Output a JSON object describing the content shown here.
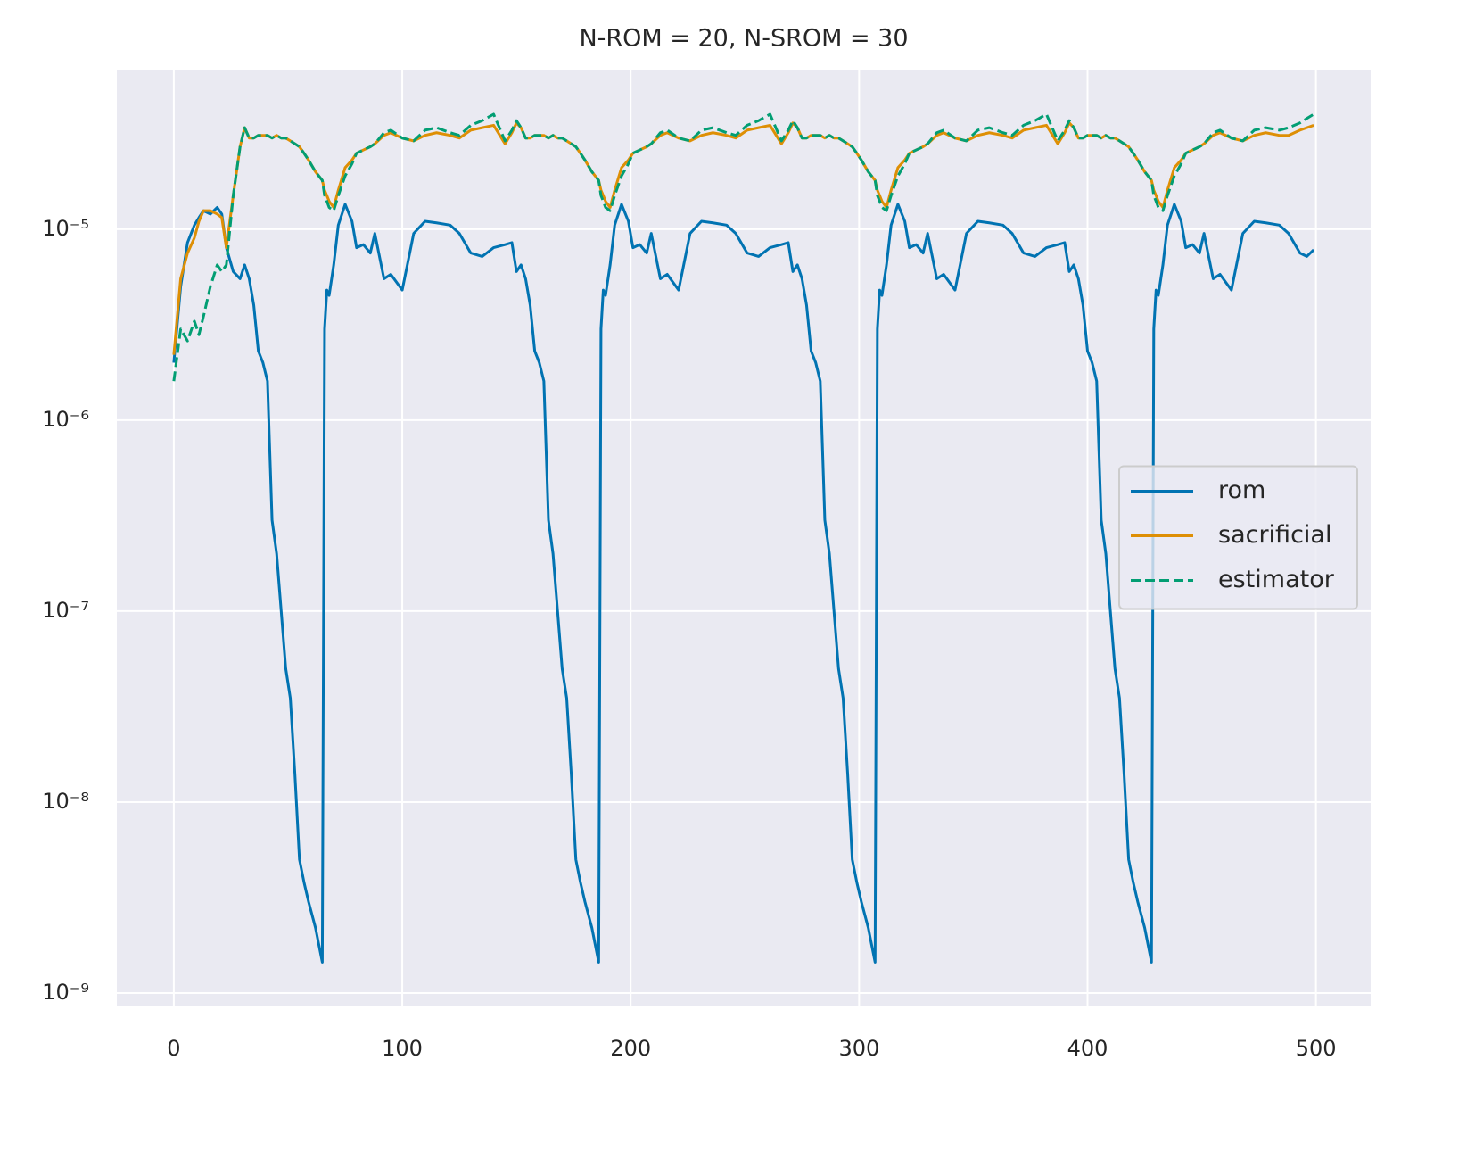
{
  "chart_data": {
    "type": "line",
    "title": "N-ROM = 20, N-SROM = 30",
    "x": [
      0,
      3,
      6,
      9,
      11,
      13,
      16,
      19,
      21,
      23,
      26,
      29,
      31,
      33,
      35,
      37,
      39,
      41,
      43,
      45,
      47,
      49,
      51,
      53,
      55,
      57,
      59,
      62,
      65,
      66,
      67,
      68,
      70,
      72,
      75,
      78,
      80,
      83,
      86,
      88,
      92,
      95,
      100,
      105,
      110,
      115,
      121,
      125,
      130,
      135,
      140,
      145,
      148,
      150,
      152,
      154,
      156,
      158,
      160,
      162,
      164,
      166,
      168,
      170,
      172,
      174,
      176,
      178,
      180,
      183,
      186,
      187,
      188,
      189,
      191,
      193,
      196,
      199,
      201,
      204,
      207,
      209,
      213,
      216,
      221,
      226,
      231,
      236,
      242,
      246,
      251,
      256,
      261,
      266,
      269,
      271,
      273,
      275,
      277,
      279,
      281,
      283,
      285,
      287,
      289,
      291,
      293,
      295,
      297,
      299,
      301,
      304,
      307,
      308,
      309,
      310,
      312,
      314,
      317,
      320,
      322,
      325,
      328,
      330,
      334,
      337,
      342,
      347,
      352,
      357,
      363,
      367,
      372,
      377,
      382,
      387,
      390,
      392,
      394,
      396,
      398,
      400,
      402,
      404,
      406,
      408,
      410,
      412,
      414,
      416,
      418,
      420,
      422,
      425,
      428,
      429,
      430,
      431,
      433,
      435,
      438,
      441,
      443,
      446,
      449,
      451,
      455,
      458,
      463,
      468,
      473,
      478,
      484,
      488,
      493,
      496,
      499
    ],
    "series": [
      {
        "name": "rom",
        "color": "#0173b2",
        "linestyle": "solid",
        "values": [
          2e-06,
          5e-06,
          8.5e-06,
          1.05e-05,
          1.15e-05,
          1.25e-05,
          1.2e-05,
          1.3e-05,
          1.2e-05,
          8e-06,
          6e-06,
          5.5e-06,
          6.5e-06,
          5.5e-06,
          4e-06,
          2.3e-06,
          2e-06,
          1.6e-06,
          3e-07,
          2e-07,
          1e-07,
          5e-08,
          3.5e-08,
          1.4e-08,
          5e-09,
          3.8e-09,
          3e-09,
          2.2e-09,
          1.45e-09,
          3e-06,
          4.8e-06,
          4.5e-06,
          6.5e-06,
          1.05e-05,
          1.35e-05,
          1.1e-05,
          8e-06,
          8.3e-06,
          7.5e-06,
          9.5e-06,
          5.5e-06,
          5.8e-06,
          4.8e-06,
          9.5e-06,
          1.1e-05,
          1.08e-05,
          1.05e-05,
          9.5e-06,
          7.5e-06,
          7.2e-06,
          8e-06,
          8.3e-06,
          8.5e-06,
          6e-06,
          6.5e-06,
          5.5e-06,
          4e-06,
          2.3e-06,
          2e-06,
          1.6e-06,
          3e-07,
          2e-07,
          1e-07,
          5e-08,
          3.5e-08,
          1.4e-08,
          5e-09,
          3.8e-09,
          3e-09,
          2.2e-09,
          1.45e-09,
          3e-06,
          4.8e-06,
          4.5e-06,
          6.5e-06,
          1.05e-05,
          1.35e-05,
          1.1e-05,
          8e-06,
          8.3e-06,
          7.5e-06,
          9.5e-06,
          5.5e-06,
          5.8e-06,
          4.8e-06,
          9.5e-06,
          1.1e-05,
          1.08e-05,
          1.05e-05,
          9.5e-06,
          7.5e-06,
          7.2e-06,
          8e-06,
          8.3e-06,
          8.5e-06,
          6e-06,
          6.5e-06,
          5.5e-06,
          4e-06,
          2.3e-06,
          2e-06,
          1.6e-06,
          3e-07,
          2e-07,
          1e-07,
          5e-08,
          3.5e-08,
          1.4e-08,
          5e-09,
          3.8e-09,
          3e-09,
          2.2e-09,
          1.45e-09,
          3e-06,
          4.8e-06,
          4.5e-06,
          6.5e-06,
          1.05e-05,
          1.35e-05,
          1.1e-05,
          8e-06,
          8.3e-06,
          7.5e-06,
          9.5e-06,
          5.5e-06,
          5.8e-06,
          4.8e-06,
          9.5e-06,
          1.1e-05,
          1.08e-05,
          1.05e-05,
          9.5e-06,
          7.5e-06,
          7.2e-06,
          8e-06,
          8.3e-06,
          8.5e-06,
          6e-06,
          6.5e-06,
          5.5e-06,
          4e-06,
          2.3e-06,
          2e-06,
          1.6e-06,
          3e-07,
          2e-07,
          1e-07,
          5e-08,
          3.5e-08,
          1.4e-08,
          5e-09,
          3.8e-09,
          3e-09,
          2.2e-09,
          1.45e-09,
          3e-06,
          4.8e-06,
          4.5e-06,
          6.5e-06,
          1.05e-05,
          1.35e-05,
          1.1e-05,
          8e-06,
          8.3e-06,
          7.5e-06,
          9.5e-06,
          5.5e-06,
          5.8e-06,
          4.8e-06,
          9.5e-06,
          1.1e-05,
          1.08e-05,
          1.05e-05,
          9.5e-06,
          7.5e-06,
          7.2e-06,
          7.8e-06
        ]
      },
      {
        "name": "sacrificial",
        "color": "#de8f05",
        "linestyle": "solid",
        "values": [
          2.2e-06,
          5.5e-06,
          7.5e-06,
          9e-06,
          1.1e-05,
          1.25e-05,
          1.25e-05,
          1.2e-05,
          1.15e-05,
          8e-06,
          1.5e-05,
          2.7e-05,
          3.4e-05,
          3e-05,
          3e-05,
          3.1e-05,
          3.1e-05,
          3.1e-05,
          3e-05,
          3.1e-05,
          3e-05,
          3e-05,
          2.9e-05,
          2.8e-05,
          2.7e-05,
          2.5e-05,
          2.3e-05,
          2e-05,
          1.8e-05,
          1.6e-05,
          1.5e-05,
          1.4e-05,
          1.3e-05,
          1.6e-05,
          2.1e-05,
          2.3e-05,
          2.5e-05,
          2.6e-05,
          2.7e-05,
          2.8e-05,
          3.1e-05,
          3.2e-05,
          3e-05,
          2.9e-05,
          3.1e-05,
          3.2e-05,
          3.1e-05,
          3e-05,
          3.3e-05,
          3.4e-05,
          3.5e-05,
          2.8e-05,
          3.2e-05,
          3.6e-05,
          3.4e-05,
          3e-05,
          3e-05,
          3.1e-05,
          3.1e-05,
          3.1e-05,
          3e-05,
          3.1e-05,
          3e-05,
          3e-05,
          2.9e-05,
          2.8e-05,
          2.7e-05,
          2.5e-05,
          2.3e-05,
          2e-05,
          1.8e-05,
          1.6e-05,
          1.5e-05,
          1.4e-05,
          1.3e-05,
          1.6e-05,
          2.1e-05,
          2.3e-05,
          2.5e-05,
          2.6e-05,
          2.7e-05,
          2.8e-05,
          3.1e-05,
          3.2e-05,
          3e-05,
          2.9e-05,
          3.1e-05,
          3.2e-05,
          3.1e-05,
          3e-05,
          3.3e-05,
          3.4e-05,
          3.5e-05,
          2.8e-05,
          3.2e-05,
          3.6e-05,
          3.4e-05,
          3e-05,
          3e-05,
          3.1e-05,
          3.1e-05,
          3.1e-05,
          3e-05,
          3.1e-05,
          3e-05,
          3e-05,
          2.9e-05,
          2.8e-05,
          2.7e-05,
          2.5e-05,
          2.3e-05,
          2e-05,
          1.8e-05,
          1.6e-05,
          1.5e-05,
          1.4e-05,
          1.3e-05,
          1.6e-05,
          2.1e-05,
          2.3e-05,
          2.5e-05,
          2.6e-05,
          2.7e-05,
          2.8e-05,
          3.1e-05,
          3.2e-05,
          3e-05,
          2.9e-05,
          3.1e-05,
          3.2e-05,
          3.1e-05,
          3e-05,
          3.3e-05,
          3.4e-05,
          3.5e-05,
          2.8e-05,
          3.2e-05,
          3.6e-05,
          3.4e-05,
          3e-05,
          3e-05,
          3.1e-05,
          3.1e-05,
          3.1e-05,
          3e-05,
          3.1e-05,
          3e-05,
          3e-05,
          2.9e-05,
          2.8e-05,
          2.7e-05,
          2.5e-05,
          2.3e-05,
          2e-05,
          1.8e-05,
          1.6e-05,
          1.5e-05,
          1.4e-05,
          1.3e-05,
          1.6e-05,
          2.1e-05,
          2.3e-05,
          2.5e-05,
          2.6e-05,
          2.7e-05,
          2.8e-05,
          3.1e-05,
          3.2e-05,
          3e-05,
          2.9e-05,
          3.1e-05,
          3.2e-05,
          3.1e-05,
          3.1e-05,
          3.3e-05,
          3.4e-05,
          3.5e-05
        ]
      },
      {
        "name": "estimator",
        "color": "#029e73",
        "linestyle": "dashed",
        "values": [
          1.6e-06,
          3e-06,
          2.6e-06,
          3.3e-06,
          2.8e-06,
          3.5e-06,
          5e-06,
          6.5e-06,
          6e-06,
          6.5e-06,
          1.5e-05,
          2.7e-05,
          3.4e-05,
          3e-05,
          3e-05,
          3.1e-05,
          3.1e-05,
          3.1e-05,
          3e-05,
          3.1e-05,
          3e-05,
          3e-05,
          2.9e-05,
          2.8e-05,
          2.7e-05,
          2.5e-05,
          2.3e-05,
          2e-05,
          1.8e-05,
          1.5e-05,
          1.4e-05,
          1.3e-05,
          1.25e-05,
          1.5e-05,
          1.9e-05,
          2.2e-05,
          2.5e-05,
          2.6e-05,
          2.7e-05,
          2.8e-05,
          3.2e-05,
          3.3e-05,
          3e-05,
          2.9e-05,
          3.3e-05,
          3.4e-05,
          3.2e-05,
          3.1e-05,
          3.5e-05,
          3.7e-05,
          4e-05,
          2.9e-05,
          3.3e-05,
          3.7e-05,
          3.4e-05,
          3e-05,
          3e-05,
          3.1e-05,
          3.1e-05,
          3.1e-05,
          3e-05,
          3.1e-05,
          3e-05,
          3e-05,
          2.9e-05,
          2.8e-05,
          2.7e-05,
          2.5e-05,
          2.3e-05,
          2e-05,
          1.8e-05,
          1.5e-05,
          1.4e-05,
          1.3e-05,
          1.25e-05,
          1.5e-05,
          1.9e-05,
          2.2e-05,
          2.5e-05,
          2.6e-05,
          2.7e-05,
          2.8e-05,
          3.2e-05,
          3.3e-05,
          3e-05,
          2.9e-05,
          3.3e-05,
          3.4e-05,
          3.2e-05,
          3.1e-05,
          3.5e-05,
          3.7e-05,
          4e-05,
          2.9e-05,
          3.3e-05,
          3.7e-05,
          3.4e-05,
          3e-05,
          3e-05,
          3.1e-05,
          3.1e-05,
          3.1e-05,
          3e-05,
          3.1e-05,
          3e-05,
          3e-05,
          2.9e-05,
          2.8e-05,
          2.7e-05,
          2.5e-05,
          2.3e-05,
          2e-05,
          1.8e-05,
          1.5e-05,
          1.4e-05,
          1.3e-05,
          1.25e-05,
          1.5e-05,
          1.9e-05,
          2.2e-05,
          2.5e-05,
          2.6e-05,
          2.7e-05,
          2.8e-05,
          3.2e-05,
          3.3e-05,
          3e-05,
          2.9e-05,
          3.3e-05,
          3.4e-05,
          3.2e-05,
          3.1e-05,
          3.5e-05,
          3.7e-05,
          4e-05,
          2.9e-05,
          3.3e-05,
          3.7e-05,
          3.4e-05,
          3e-05,
          3e-05,
          3.1e-05,
          3.1e-05,
          3.1e-05,
          3e-05,
          3.1e-05,
          3e-05,
          3e-05,
          2.9e-05,
          2.8e-05,
          2.7e-05,
          2.5e-05,
          2.3e-05,
          2e-05,
          1.8e-05,
          1.5e-05,
          1.4e-05,
          1.3e-05,
          1.25e-05,
          1.5e-05,
          1.9e-05,
          2.2e-05,
          2.5e-05,
          2.6e-05,
          2.7e-05,
          2.8e-05,
          3.2e-05,
          3.3e-05,
          3e-05,
          2.9e-05,
          3.3e-05,
          3.4e-05,
          3.3e-05,
          3.4e-05,
          3.6e-05,
          3.8e-05,
          4e-05
        ]
      }
    ],
    "xlim": [
      -24.95,
      523.95
    ],
    "xticks": [
      0,
      100,
      200,
      300,
      400,
      500
    ],
    "ylim": [
      8.6e-10,
      6.85e-05
    ],
    "yscale": "log",
    "yticks": [
      {
        "value": 1e-09,
        "label": "10⁻⁹"
      },
      {
        "value": 1e-08,
        "label": "10⁻⁸"
      },
      {
        "value": 1e-07,
        "label": "10⁻⁷"
      },
      {
        "value": 1e-06,
        "label": "10⁻⁶"
      },
      {
        "value": 1e-05,
        "label": "10⁻⁵"
      }
    ],
    "grid": true,
    "legend_loc": "center right"
  }
}
